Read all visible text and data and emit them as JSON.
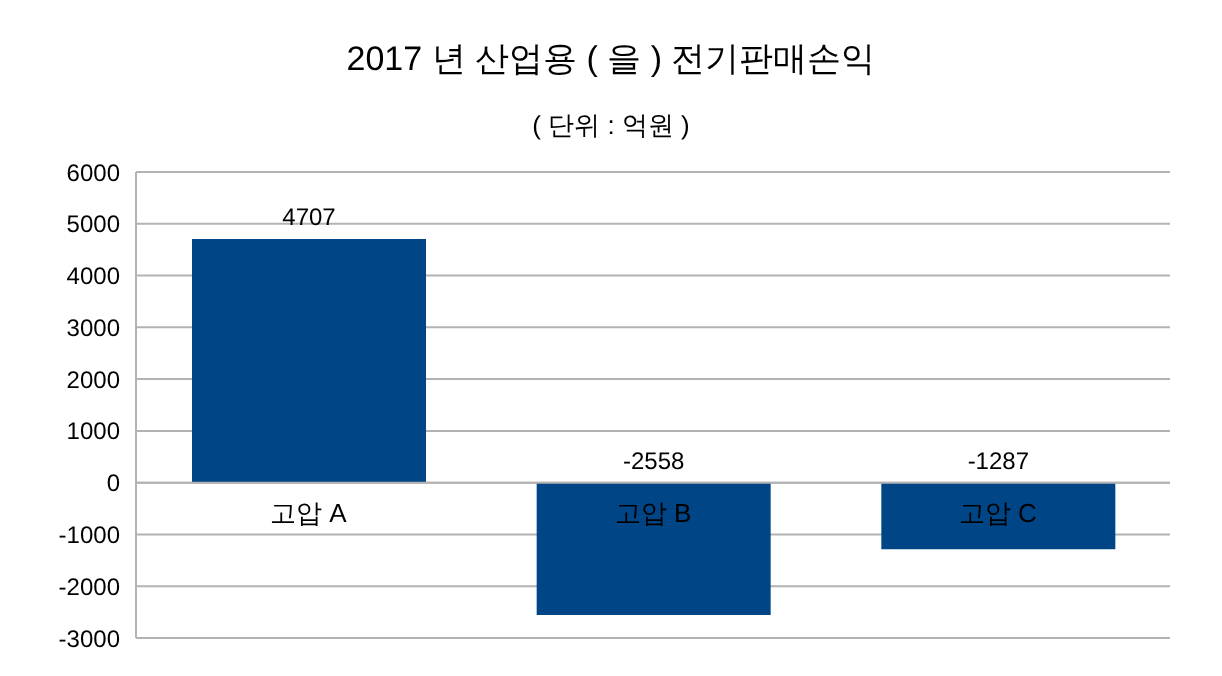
{
  "chart_data": {
    "type": "bar",
    "title": "2017 년  산업용 ( 을 )  전기판매손익",
    "subtitle": "( 단위 :  억원 )",
    "categories": [
      "고압 A",
      "고압 B",
      "고압 C"
    ],
    "values": [
      4707,
      -2558,
      -1287
    ],
    "color": "#004586",
    "data_labels": true,
    "ylim": [
      -3000,
      6000
    ],
    "yticks": [
      -3000,
      -2000,
      -1000,
      0,
      1000,
      2000,
      3000,
      4000,
      5000,
      6000
    ],
    "grid": "y"
  }
}
